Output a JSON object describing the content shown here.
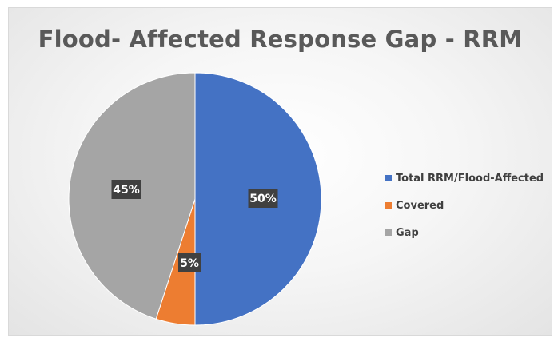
{
  "chart_data": {
    "type": "pie",
    "title": "Flood- Affected Response Gap - RRM",
    "categories": [
      "Total RRM/Flood-Affected",
      "Covered",
      "Gap"
    ],
    "values": [
      50,
      5,
      45
    ],
    "data_labels": [
      "50%",
      "5%",
      "45%"
    ],
    "colors": [
      "#4472C4",
      "#ED7D31",
      "#A5A5A5"
    ],
    "legend_position": "right"
  }
}
